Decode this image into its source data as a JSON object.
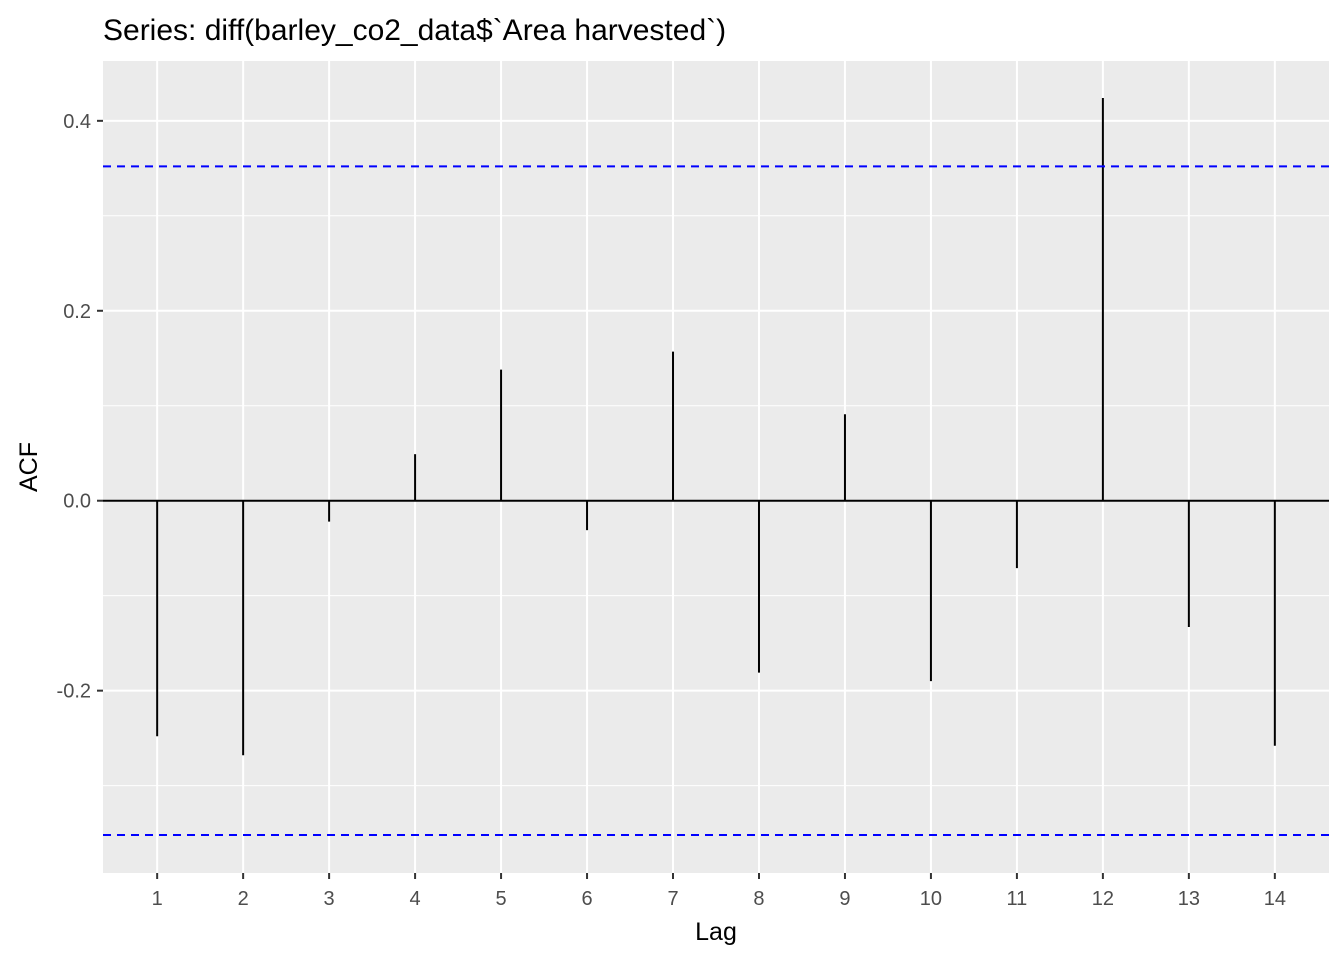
{
  "chart_data": {
    "type": "bar",
    "title": "Series: diff(barley_co2_data$`Area harvested`)",
    "xlabel": "Lag",
    "ylabel": "ACF",
    "x": [
      1,
      2,
      3,
      4,
      5,
      6,
      7,
      8,
      9,
      10,
      11,
      12,
      13,
      14
    ],
    "values": [
      -0.248,
      -0.268,
      -0.022,
      0.049,
      0.138,
      -0.031,
      0.157,
      -0.181,
      0.091,
      -0.19,
      -0.071,
      0.424,
      -0.133,
      -0.258
    ],
    "confidence_bounds": [
      0.352,
      -0.352
    ],
    "xlim": [
      0.37,
      14.63
    ],
    "ylim": [
      -0.392,
      0.463
    ],
    "y_ticks": [
      "-0.2",
      "0.0",
      "0.2",
      "0.4"
    ],
    "y_tick_values": [
      -0.2,
      0.0,
      0.2,
      0.4
    ],
    "x_ticks": [
      "1",
      "2",
      "3",
      "4",
      "5",
      "6",
      "7",
      "8",
      "9",
      "10",
      "11",
      "12",
      "13",
      "14"
    ],
    "grid": true,
    "legend": "none",
    "colors": {
      "panel_background": "#ebebeb",
      "grid_line": "#ffffff",
      "bar": "#000000",
      "zero_line": "#000000",
      "confidence_line": "#0000ff",
      "tick_text": "#4d4d4d",
      "tick_mark": "#333333"
    }
  }
}
